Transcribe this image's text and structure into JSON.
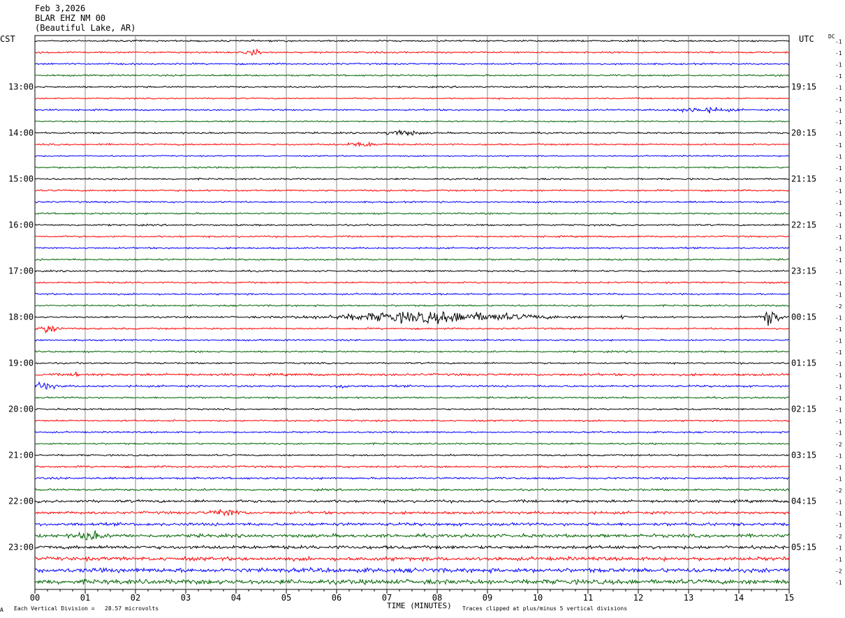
{
  "header": {
    "date": "Feb 3,2026",
    "station": "BLAR EHZ NM 00",
    "location": "(Beautiful Lake, AR)"
  },
  "left_zone": "CST",
  "right_zone": "UTC",
  "dc_label": "DC",
  "footer": {
    "scale_note": "Each Vertical Division =   28.57 microvolts",
    "clip_note": "Traces clipped at plus/minus 5 vertical divisions",
    "corner_mark": "A"
  },
  "colors": [
    "#000000",
    "#ff0000",
    "#0000ff",
    "#006400"
  ],
  "chart_data": {
    "type": "line",
    "xlabel": "TIME (MINUTES)",
    "x_ticks": [
      "00",
      "01",
      "02",
      "03",
      "04",
      "05",
      "06",
      "07",
      "08",
      "09",
      "10",
      "11",
      "12",
      "13",
      "14",
      "15"
    ],
    "xlim": [
      0,
      15
    ],
    "rows": 48,
    "hour_labels_left": [
      "13:00",
      "14:00",
      "15:00",
      "16:00",
      "17:00",
      "18:00",
      "19:00",
      "20:00",
      "21:00",
      "22:00",
      "23:00"
    ],
    "hour_labels_right": [
      "19:15",
      "20:15",
      "21:15",
      "22:15",
      "23:15",
      "00:15",
      "01:15",
      "02:15",
      "03:15",
      "04:15",
      "05:15"
    ],
    "first_labeled_row": 4,
    "rows_per_hour": 4,
    "dc_offsets": [
      "-1",
      "-1",
      "-1",
      "-1",
      "-1",
      "-1",
      "-1",
      "-1",
      "-1",
      "-1",
      "-1",
      "-1",
      "-1",
      "-1",
      "-1",
      "-1",
      "-1",
      "-1",
      "-1",
      "-1",
      "-1",
      "-1",
      "-1",
      "-2",
      "-1",
      "-1",
      "-1",
      "-1",
      "-1",
      "-1",
      "-1",
      "-1",
      "-1",
      "-1",
      "-1",
      "-2",
      "-1",
      "-1",
      "-1",
      "-2",
      "-1",
      "-1",
      "-1",
      "-2",
      "-1",
      "-1",
      "-2",
      "-1"
    ],
    "noise_levels": [
      1.0,
      1.0,
      1.0,
      1.0,
      1.0,
      0.8,
      1.0,
      0.8,
      1.0,
      1.0,
      0.8,
      1.0,
      1.0,
      1.0,
      1.0,
      1.0,
      1.0,
      1.0,
      1.0,
      1.0,
      1.0,
      1.0,
      1.0,
      1.0,
      1.0,
      1.0,
      1.0,
      1.0,
      1.0,
      1.4,
      1.2,
      1.0,
      1.0,
      1.0,
      1.0,
      1.0,
      1.0,
      1.2,
      1.2,
      1.2,
      1.6,
      1.6,
      1.8,
      2.0,
      2.0,
      2.2,
      2.6,
      2.8
    ],
    "events": [
      {
        "row": 1,
        "minute": 4.35,
        "amplitude": 3,
        "width": 0.12
      },
      {
        "row": 6,
        "minute": 13.3,
        "amplitude": 2.5,
        "width": 0.5
      },
      {
        "row": 8,
        "minute": 7.3,
        "amplitude": 3,
        "width": 0.3
      },
      {
        "row": 9,
        "minute": 6.5,
        "amplitude": 2,
        "width": 0.3
      },
      {
        "row": 24,
        "minute": 7.9,
        "amplitude": 6,
        "width": 1.8
      },
      {
        "row": 24,
        "minute": 14.65,
        "amplitude": 12,
        "width": 0.15
      },
      {
        "row": 24,
        "minute": 11.7,
        "amplitude": 5,
        "width": 0.04
      },
      {
        "row": 25,
        "minute": 0.3,
        "amplitude": 6,
        "width": 0.15
      },
      {
        "row": 29,
        "minute": 0.82,
        "amplitude": 6,
        "width": 0.05
      },
      {
        "row": 30,
        "minute": 0.18,
        "amplitude": 4,
        "width": 0.2
      },
      {
        "row": 30,
        "minute": 6.1,
        "amplitude": 3,
        "width": 0.1
      },
      {
        "row": 41,
        "minute": 3.8,
        "amplitude": 3,
        "width": 0.3
      },
      {
        "row": 43,
        "minute": 1.1,
        "amplitude": 4,
        "width": 0.25
      }
    ]
  }
}
